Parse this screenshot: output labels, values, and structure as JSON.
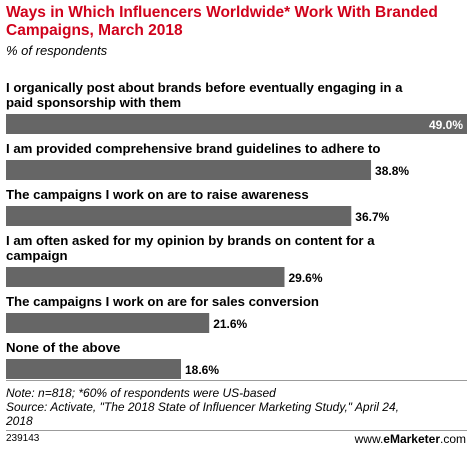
{
  "title": "Ways in Which Influencers Worldwide* Work With Branded Campaigns, March 2018",
  "subtitle": "% of respondents",
  "chart_data": {
    "type": "bar",
    "orientation": "horizontal",
    "categories": [
      "I organically post about brands before eventually engaging in a paid sponsorship with them",
      "I am provided comprehensive brand guidelines to adhere to",
      "The campaigns I work on are to raise awareness",
      "I am often asked for my opinion by brands on content for a campaign",
      "The campaigns I work on are for sales conversion",
      "None of the above"
    ],
    "label_lines": [
      [
        "I organically post about brands before eventually engaging in a",
        "paid sponsorship with them"
      ],
      [
        "I am provided comprehensive brand guidelines to adhere to"
      ],
      [
        "The campaigns I work on are to raise awareness"
      ],
      [
        "I am often asked for my opinion by brands on content for a",
        "campaign"
      ],
      [
        "The campaigns I work on are for sales conversion"
      ],
      [
        "None of the above"
      ]
    ],
    "values": [
      49.0,
      38.8,
      36.7,
      29.6,
      21.6,
      18.6
    ],
    "value_labels": [
      "49.0%",
      "38.8%",
      "36.7%",
      "29.6%",
      "21.6%",
      "18.6%"
    ],
    "xlim": [
      0,
      49.0
    ],
    "bar_color": "#666666",
    "inside_label_color": "#ffffff",
    "outside_label_color": "#000000",
    "grid": false,
    "legend": "none"
  },
  "note_lines": [
    "Note: n=818; *60% of respondents were US-based",
    "Source: Activate, \"The 2018 State of Influencer Marketing Study,\" April 24,",
    "2018"
  ],
  "footer": {
    "id": "239143",
    "url_prefix": "www.",
    "brand": "eMarketer",
    "url_suffix": ".com"
  }
}
